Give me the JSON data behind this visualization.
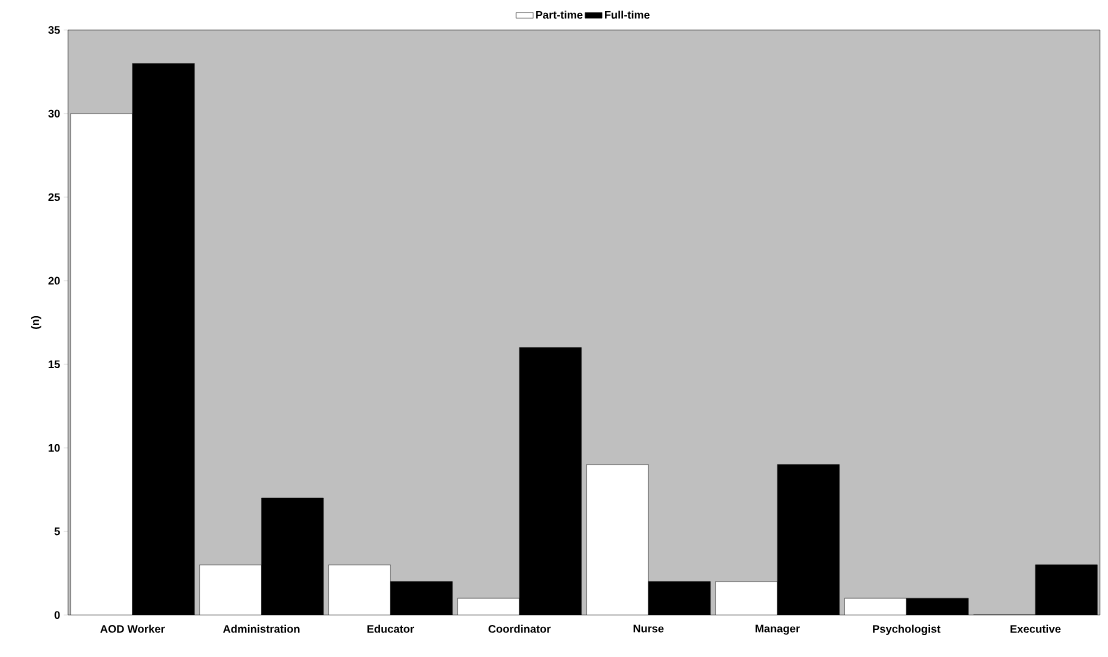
{
  "chart_data": {
    "type": "bar",
    "ylabel": "(n)",
    "categories": [
      "AOD Worker",
      "Administration",
      "Educator",
      "Coordinator",
      "Nurse",
      "Manager",
      "Psychologist",
      "Executive"
    ],
    "series": [
      {
        "name": "Part-time",
        "color": "#ffffff",
        "values": [
          30,
          3,
          3,
          1,
          9,
          2,
          1,
          0
        ]
      },
      {
        "name": "Full-time",
        "color": "#000000",
        "values": [
          33,
          7,
          2,
          16,
          2,
          9,
          1,
          3
        ]
      }
    ],
    "ylim": [
      0,
      35
    ],
    "yticks": [
      0,
      5,
      10,
      15,
      20,
      25,
      30,
      35
    ],
    "grid": false,
    "legend": "top"
  }
}
